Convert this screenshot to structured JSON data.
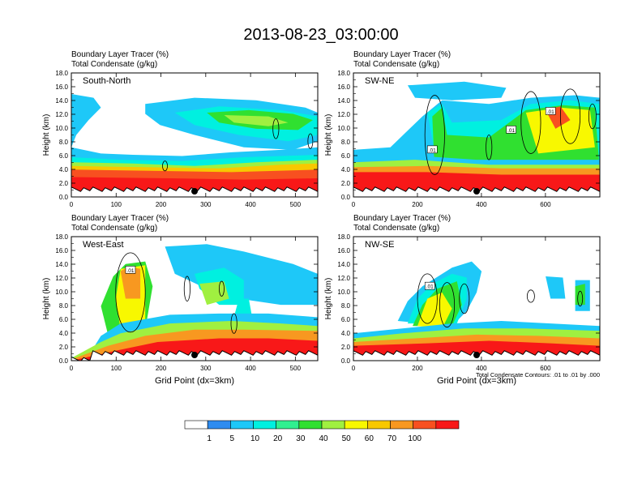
{
  "main_title": "2013-08-23_03:00:00",
  "header_line1": "Boundary Layer Tracer   (%)",
  "header_line2": "Total Condensate   (g/kg)",
  "chart_data": [
    {
      "type": "heatmap",
      "panel_label": "South-North",
      "xlabel": "",
      "ylabel": "Height (km)",
      "xlim": [
        0,
        550
      ],
      "ylim": [
        0,
        18
      ],
      "xticks": [
        "0",
        "100",
        "200",
        "300",
        "400",
        "500"
      ],
      "yticks": [
        "0.0",
        "2.0",
        "4.0",
        "6.0",
        "8.0",
        "10.0",
        "12.0",
        "14.0",
        "16.0",
        "18.0"
      ],
      "marker_x": 275
    },
    {
      "type": "heatmap",
      "panel_label": "SW-NE",
      "xlabel": "",
      "ylabel": "Height (km)",
      "xlim": [
        0,
        770
      ],
      "ylim": [
        0,
        18
      ],
      "xticks": [
        "0",
        "200",
        "400",
        "600"
      ],
      "yticks": [
        "0.0",
        "2.0",
        "4.0",
        "6.0",
        "8.0",
        "10.0",
        "12.0",
        "14.0",
        "16.0",
        "18.0"
      ],
      "marker_x": 385,
      "contour_labels": [
        ".01",
        ".01",
        ".01"
      ]
    },
    {
      "type": "heatmap",
      "panel_label": "West-East",
      "xlabel": "Grid Point (dx=3km)",
      "ylabel": "Height (km)",
      "xlim": [
        0,
        550
      ],
      "ylim": [
        0,
        18
      ],
      "xticks": [
        "0",
        "100",
        "200",
        "300",
        "400",
        "500"
      ],
      "yticks": [
        "0.0",
        "2.0",
        "4.0",
        "6.0",
        "8.0",
        "10.0",
        "12.0",
        "14.0",
        "16.0",
        "18.0"
      ],
      "marker_x": 275,
      "contour_labels": [
        ".01"
      ]
    },
    {
      "type": "heatmap",
      "panel_label": "NW-SE",
      "xlabel": "Grid Point (dx=3km)",
      "ylabel": "Height (km)",
      "xlim": [
        0,
        770
      ],
      "ylim": [
        0,
        18
      ],
      "xticks": [
        "0",
        "200",
        "400",
        "600"
      ],
      "yticks": [
        "0.0",
        "2.0",
        "4.0",
        "6.0",
        "8.0",
        "10.0",
        "12.0",
        "14.0",
        "16.0",
        "18.0"
      ],
      "marker_x": 385,
      "contour_labels": [
        ".01"
      ],
      "footnote": "Total Condensate Contours: .01 to .01 by .000"
    }
  ],
  "colorbar": {
    "labels": [
      "1",
      "5",
      "10",
      "20",
      "30",
      "40",
      "50",
      "60",
      "70",
      "100"
    ],
    "colors": [
      "#ffffff",
      "#2e8cf0",
      "#1ec8f8",
      "#00f0e0",
      "#30f090",
      "#30e030",
      "#a0f040",
      "#f8f800",
      "#f8c800",
      "#f89820",
      "#f85020",
      "#f81818"
    ]
  }
}
